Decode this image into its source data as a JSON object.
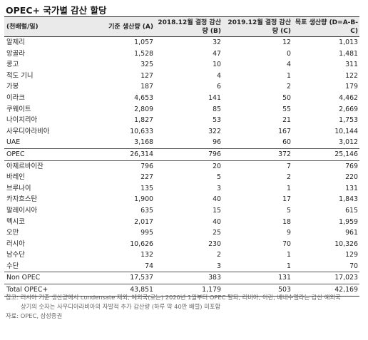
{
  "title": "OPEC+ 국가별 감산 할당",
  "headers": [
    "(천배럴/일)",
    "기준 생산량 (A)",
    "2018.12월 결정 감산량 (B)",
    "2019.12월 결정 감산량 (C)",
    "목표 생산량 (D=A-B-C)"
  ],
  "rows": [
    [
      "알제리",
      "1,057",
      "32",
      "12",
      "1,013"
    ],
    [
      "앙골라",
      "1,528",
      "47",
      "0",
      "1,481"
    ],
    [
      "콩고",
      "325",
      "10",
      "4",
      "311"
    ],
    [
      "적도 기니",
      "127",
      "4",
      "1",
      "122"
    ],
    [
      "가봉",
      "187",
      "6",
      "2",
      "179"
    ],
    [
      "이라크",
      "4,653",
      "141",
      "50",
      "4,462"
    ],
    [
      "쿠웨이트",
      "2,809",
      "85",
      "55",
      "2,669"
    ],
    [
      "나이지리아",
      "1,827",
      "53",
      "21",
      "1,753"
    ],
    [
      "사우디아라비아",
      "10,633",
      "322",
      "167",
      "10,144"
    ],
    [
      "UAE",
      "3,168",
      "96",
      "60",
      "3,012"
    ],
    [
      "OPEC",
      "26,314",
      "796",
      "372",
      "25,146"
    ],
    [
      "아제르바이잔",
      "796",
      "20",
      "7",
      "769"
    ],
    [
      "바레인",
      "227",
      "5",
      "2",
      "220"
    ],
    [
      "브루나이",
      "135",
      "3",
      "1",
      "131"
    ],
    [
      "카자흐스탄",
      "1,900",
      "40",
      "17",
      "1,843"
    ],
    [
      "말레이시아",
      "635",
      "15",
      "5",
      "615"
    ],
    [
      "멕시코",
      "2,017",
      "40",
      "18",
      "1,959"
    ],
    [
      "오만",
      "995",
      "25",
      "9",
      "961"
    ],
    [
      "러시아",
      "10,626",
      "230",
      "70",
      "10,326"
    ],
    [
      "남수단",
      "132",
      "2",
      "1",
      "129"
    ],
    [
      "수단",
      "74",
      "3",
      "1",
      "70"
    ],
    [
      "Non OPEC",
      "17,537",
      "383",
      "131",
      "17,023"
    ],
    [
      "Total OPEC+",
      "43,851",
      "1,179",
      "503",
      "42,169"
    ]
  ],
  "notes": {
    "line1": "참고: 러시아 기준 생산량에서 condensate 제외, 예외국(로는) 2020년 1월부터 OPEC 탈퇴, 리비아, 이란, 베네수엘라는 감산 예외국",
    "line2": "상기의 숫자는 사우디아라비아의 자발적 추가 감산량 (하루 약 40만 배럴) 미포함",
    "source": "자료: OPEC, 삼성증권"
  }
}
